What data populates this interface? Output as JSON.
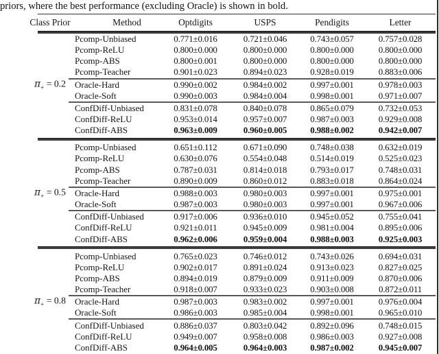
{
  "caption": "priors, where the best performance (excluding Oracle) is shown in bold.",
  "table": {
    "col_headers": [
      "Class Prior",
      "Method",
      "Optdigits",
      "USPS",
      "Pendigits",
      "Letter"
    ],
    "blocks": [
      {
        "class_prior": {
          "symbol": "π",
          "subscript": "+",
          "rest": "= 0.2"
        },
        "groups": [
          {
            "rows": [
              {
                "method": "Pcomp-Unbiased",
                "bold": false,
                "values": [
                  "0.771±0.016",
                  "0.721±0.046",
                  "0.743±0.057",
                  "0.757±0.028"
                ]
              },
              {
                "method": "Pcomp-ReLU",
                "bold": false,
                "values": [
                  "0.800±0.000",
                  "0.800±0.000",
                  "0.800±0.000",
                  "0.800±0.000"
                ]
              },
              {
                "method": "Pcomp-ABS",
                "bold": false,
                "values": [
                  "0.800±0.001",
                  "0.800±0.000",
                  "0.800±0.000",
                  "0.800±0.000"
                ]
              },
              {
                "method": "Pcomp-Teacher",
                "bold": false,
                "values": [
                  "0.901±0.023",
                  "0.894±0.023",
                  "0.928±0.019",
                  "0.883±0.006"
                ]
              }
            ]
          },
          {
            "rows": [
              {
                "method": "Oracle-Hard",
                "bold": false,
                "values": [
                  "0.990±0.002",
                  "0.984±0.002",
                  "0.997±0.001",
                  "0.978±0.003"
                ]
              },
              {
                "method": "Oracle-Soft",
                "bold": false,
                "values": [
                  "0.990±0.003",
                  "0.984±0.004",
                  "0.998±0.001",
                  "0.971±0.007"
                ]
              }
            ]
          },
          {
            "rows": [
              {
                "method": "ConfDiff-Unbiased",
                "bold": false,
                "values": [
                  "0.831±0.078",
                  "0.840±0.078",
                  "0.865±0.079",
                  "0.732±0.053"
                ]
              },
              {
                "method": "ConfDiff-ReLU",
                "bold": false,
                "values": [
                  "0.953±0.014",
                  "0.957±0.007",
                  "0.987±0.003",
                  "0.929±0.008"
                ]
              },
              {
                "method": "ConfDiff-ABS",
                "bold": true,
                "values": [
                  "0.963±0.009",
                  "0.960±0.005",
                  "0.988±0.002",
                  "0.942±0.007"
                ]
              }
            ]
          }
        ]
      },
      {
        "class_prior": {
          "symbol": "π",
          "subscript": "+",
          "rest": "= 0.5"
        },
        "groups": [
          {
            "rows": [
              {
                "method": "Pcomp-Unbiased",
                "bold": false,
                "values": [
                  "0.651±0.112",
                  "0.671±0.090",
                  "0.748±0.038",
                  "0.632±0.019"
                ]
              },
              {
                "method": "Pcomp-ReLU",
                "bold": false,
                "values": [
                  "0.630±0.076",
                  "0.554±0.048",
                  "0.514±0.019",
                  "0.525±0.023"
                ]
              },
              {
                "method": "Pcomp-ABS",
                "bold": false,
                "values": [
                  "0.787±0.031",
                  "0.814±0.018",
                  "0.793±0.017",
                  "0.748±0.031"
                ]
              },
              {
                "method": "Pcomp-Teacher",
                "bold": false,
                "values": [
                  "0.890±0.009",
                  "0.860±0.012",
                  "0.883±0.018",
                  "0.864±0.024"
                ]
              }
            ]
          },
          {
            "rows": [
              {
                "method": "Oracle-Hard",
                "bold": false,
                "values": [
                  "0.988±0.003",
                  "0.980±0.003",
                  "0.997±0.001",
                  "0.975±0.001"
                ]
              },
              {
                "method": "Oracle-Soft",
                "bold": false,
                "values": [
                  "0.987±0.003",
                  "0.980±0.003",
                  "0.997±0.001",
                  "0.967±0.006"
                ]
              }
            ]
          },
          {
            "rows": [
              {
                "method": "ConfDiff-Unbiased",
                "bold": false,
                "values": [
                  "0.917±0.006",
                  "0.936±0.010",
                  "0.945±0.052",
                  "0.755±0.041"
                ]
              },
              {
                "method": "ConfDiff-ReLU",
                "bold": false,
                "values": [
                  "0.921±0.011",
                  "0.945±0.009",
                  "0.981±0.004",
                  "0.895±0.006"
                ]
              },
              {
                "method": "ConfDiff-ABS",
                "bold": true,
                "values": [
                  "0.962±0.006",
                  "0.959±0.004",
                  "0.988±0.003",
                  "0.925±0.003"
                ]
              }
            ]
          }
        ]
      },
      {
        "class_prior": {
          "symbol": "π",
          "subscript": "+",
          "rest": "= 0.8"
        },
        "groups": [
          {
            "rows": [
              {
                "method": "Pcomp-Unbiased",
                "bold": false,
                "values": [
                  "0.765±0.023",
                  "0.746±0.012",
                  "0.743±0.026",
                  "0.694±0.031"
                ]
              },
              {
                "method": "Pcomp-ReLU",
                "bold": false,
                "values": [
                  "0.902±0.017",
                  "0.891±0.024",
                  "0.913±0.023",
                  "0.827±0.025"
                ]
              },
              {
                "method": "Pcomp-ABS",
                "bold": false,
                "values": [
                  "0.894±0.019",
                  "0.879±0.009",
                  "0.911±0.009",
                  "0.870±0.006"
                ]
              },
              {
                "method": "Pcomp-Teacher",
                "bold": false,
                "values": [
                  "0.918±0.007",
                  "0.933±0.023",
                  "0.903±0.008",
                  "0.872±0.011"
                ]
              }
            ]
          },
          {
            "rows": [
              {
                "method": "Oracle-Hard",
                "bold": false,
                "values": [
                  "0.987±0.003",
                  "0.983±0.002",
                  "0.997±0.001",
                  "0.976±0.004"
                ]
              },
              {
                "method": "Oracle-Soft",
                "bold": false,
                "values": [
                  "0.986±0.003",
                  "0.985±0.004",
                  "0.998±0.001",
                  "0.965±0.010"
                ]
              }
            ]
          },
          {
            "rows": [
              {
                "method": "ConfDiff-Unbiased",
                "bold": false,
                "values": [
                  "0.886±0.037",
                  "0.803±0.042",
                  "0.892±0.096",
                  "0.748±0.015"
                ]
              },
              {
                "method": "ConfDiff-ReLU",
                "bold": false,
                "values": [
                  "0.949±0.007",
                  "0.958±0.008",
                  "0.986±0.003",
                  "0.927±0.008"
                ]
              },
              {
                "method": "ConfDiff-ABS",
                "bold": true,
                "values": [
                  "0.964±0.005",
                  "0.964±0.003",
                  "0.987±0.002",
                  "0.945±0.007"
                ]
              }
            ]
          }
        ]
      }
    ]
  }
}
